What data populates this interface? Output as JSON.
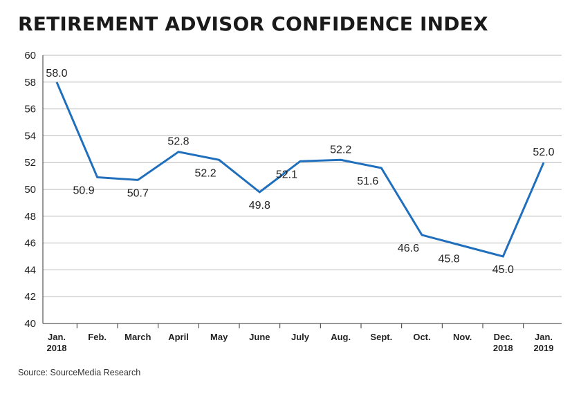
{
  "title": "RETIREMENT ADVISOR CONFIDENCE INDEX",
  "source": "Source: SourceMedia Research",
  "colors": {
    "line": "#1f6fbd",
    "grid": "#b8b8b8",
    "axis": "#333333"
  },
  "chart_data": {
    "type": "line",
    "title": "RETIREMENT ADVISOR CONFIDENCE INDEX",
    "xlabel": "",
    "ylabel": "",
    "ylim": [
      40,
      60
    ],
    "yticks": [
      40,
      42,
      44,
      46,
      48,
      50,
      52,
      54,
      56,
      58,
      60
    ],
    "grid": true,
    "categories": [
      [
        "Jan.",
        "2018"
      ],
      [
        "Feb."
      ],
      [
        "March"
      ],
      [
        "April"
      ],
      [
        "May"
      ],
      [
        "June"
      ],
      [
        "July"
      ],
      [
        "Aug."
      ],
      [
        "Sept."
      ],
      [
        "Oct."
      ],
      [
        "Nov."
      ],
      [
        "Dec.",
        "2018"
      ],
      [
        "Jan.",
        "2019"
      ]
    ],
    "series": [
      {
        "values": [
          58.0,
          50.9,
          50.7,
          52.8,
          52.2,
          49.8,
          52.1,
          52.2,
          51.6,
          46.6,
          45.8,
          45.0,
          52.0
        ],
        "labels": [
          "58.0",
          "50.9",
          "50.7",
          "52.8",
          "52.2",
          "49.8",
          "52.1",
          "52.2",
          "51.6",
          "46.6",
          "45.8",
          "45.0",
          "52.0"
        ]
      }
    ]
  }
}
